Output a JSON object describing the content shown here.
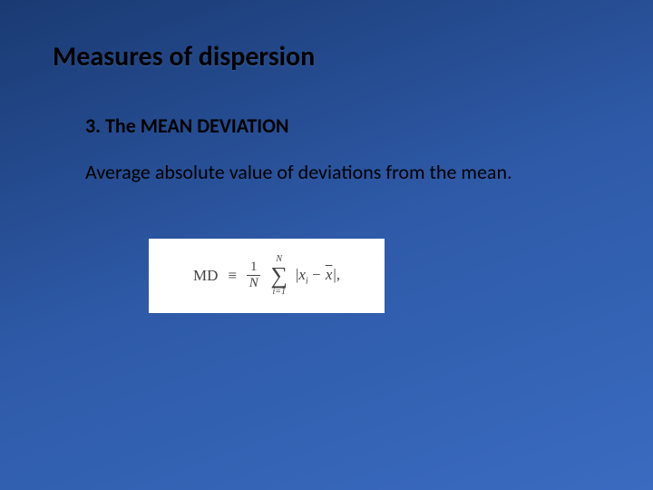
{
  "slide": {
    "title": "Measures of dispersion",
    "subtitle": "3. The MEAN DEVIATION",
    "description": "Average absolute value of deviations from the mean.",
    "formula": {
      "label": "MD",
      "equiv": "≡",
      "frac_num": "1",
      "frac_den": "N",
      "sum_upper": "N",
      "sum_sigma": "∑",
      "sum_lower": "i=1",
      "bar_open": "|",
      "x": "x",
      "i_sub": "i",
      "minus": " − ",
      "xbar": "x",
      "bar_close": "|",
      "comma": ","
    }
  },
  "styling": {
    "background_gradient": [
      "#1a3a72",
      "#2e5aa8",
      "#3a6bc0"
    ],
    "title_fontsize": 30,
    "subtitle_fontsize": 22,
    "body_fontsize": 22,
    "formula_box_bg": "#ffffff",
    "formula_color": "#444444",
    "text_color": "#000000",
    "font_family": "Calibri",
    "formula_font_family": "Times New Roman"
  }
}
